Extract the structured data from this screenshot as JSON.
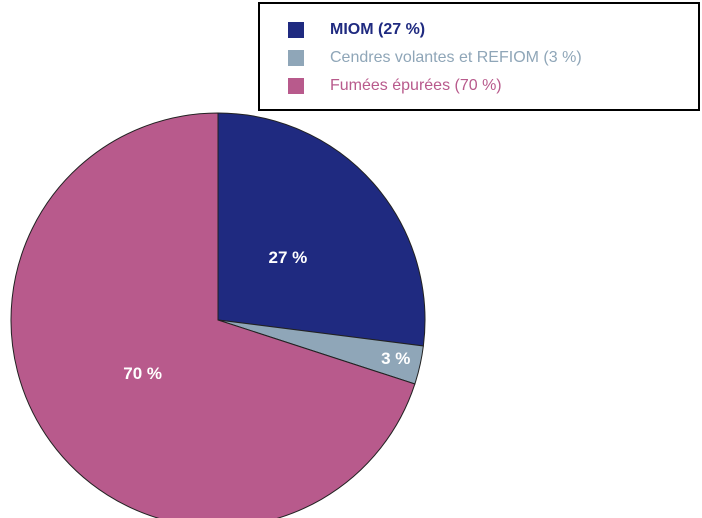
{
  "chart_data": {
    "type": "pie",
    "categories": [
      "MIOM (27 %)",
      "Cendres volantes et REFIOM (3 %)",
      "Fumées épurées (70 %)"
    ],
    "values": [
      27,
      3,
      70
    ],
    "value_labels": [
      "27 %",
      "3 %",
      "70 %"
    ],
    "colors": [
      "#1f2a80",
      "#8fa6b8",
      "#b85a8c"
    ],
    "legend": "top-right"
  }
}
